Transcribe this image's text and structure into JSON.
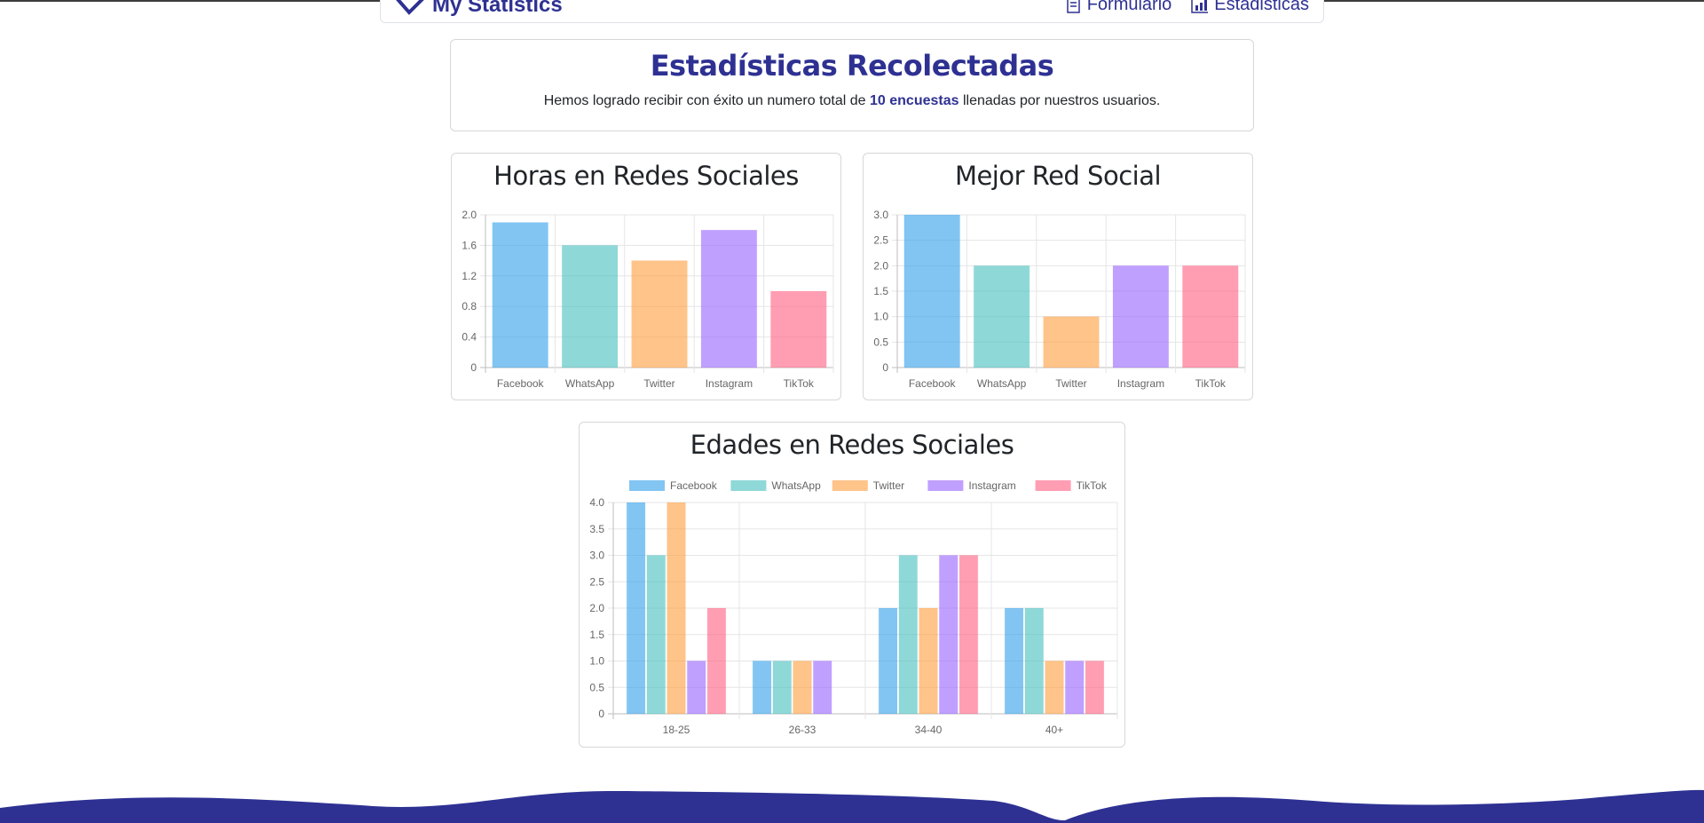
{
  "nav": {
    "brand": "My Statistics",
    "links": [
      {
        "label": "Formulario",
        "icon": "form-icon"
      },
      {
        "label": "Estadisticas",
        "icon": "chart-icon"
      }
    ]
  },
  "summary": {
    "title": "Estadísticas Recolectadas",
    "text_before": "Hemos logrado recibir con éxito un numero total de ",
    "highlight": "10 encuestas",
    "text_after": " llenadas por nuestros usuarios."
  },
  "colors": {
    "brand": "#2e3192",
    "series": {
      "Facebook": "#36a2eb",
      "WhatsApp": "#4bc0c0",
      "Twitter": "#ff9f40",
      "Instagram": "#9966ff",
      "TikTok": "#ff6384"
    }
  },
  "chart_data": [
    {
      "id": "horas",
      "type": "bar",
      "title": "Horas en Redes Sociales",
      "categories": [
        "Facebook",
        "WhatsApp",
        "Twitter",
        "Instagram",
        "TikTok"
      ],
      "values": [
        1.9,
        1.6,
        1.4,
        1.8,
        1.0
      ],
      "ylim": [
        0,
        2.0
      ],
      "yticks": [
        "0",
        "0.4",
        "0.8",
        "1.2",
        "1.6",
        "2.0"
      ],
      "grid": true,
      "legend": false
    },
    {
      "id": "mejor",
      "type": "bar",
      "title": "Mejor Red Social",
      "categories": [
        "Facebook",
        "WhatsApp",
        "Twitter",
        "Instagram",
        "TikTok"
      ],
      "values": [
        3,
        2,
        1,
        2,
        2
      ],
      "ylim": [
        0,
        3.0
      ],
      "yticks": [
        "0",
        "0.5",
        "1.0",
        "1.5",
        "2.0",
        "2.5",
        "3.0"
      ],
      "grid": true,
      "legend": false
    },
    {
      "id": "edades",
      "type": "bar",
      "title": "Edades en Redes Sociales",
      "categories": [
        "18-25",
        "26-33",
        "34-40",
        "40+"
      ],
      "series": [
        {
          "name": "Facebook",
          "values": [
            4,
            1,
            2,
            2
          ]
        },
        {
          "name": "WhatsApp",
          "values": [
            3,
            1,
            3,
            2
          ]
        },
        {
          "name": "Twitter",
          "values": [
            4,
            1,
            2,
            1
          ]
        },
        {
          "name": "Instagram",
          "values": [
            1,
            1,
            3,
            1
          ]
        },
        {
          "name": "TikTok",
          "values": [
            2,
            0,
            3,
            1
          ]
        }
      ],
      "ylim": [
        0,
        4.0
      ],
      "yticks": [
        "0",
        "0.5",
        "1.0",
        "1.5",
        "2.0",
        "2.5",
        "3.0",
        "3.5",
        "4.0"
      ],
      "grid": true,
      "legend": "top"
    }
  ]
}
